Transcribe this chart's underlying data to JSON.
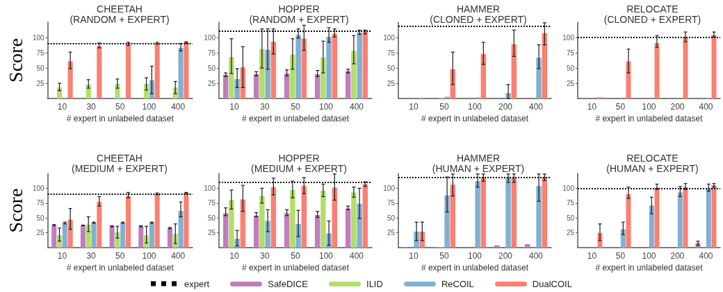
{
  "chart_data": [
    {
      "type": "bar",
      "title": "CHEETAH\n(RANDOM + EXPERT)",
      "xlabel": "# expert in unlabeled dataset",
      "ylabel": "Score",
      "categories": [
        "10",
        "30",
        "50",
        "100",
        "400"
      ],
      "ylim": [
        0,
        125
      ],
      "yticks": [
        25,
        50,
        75,
        100
      ],
      "legend": "bottom",
      "ref_lines": [
        {
          "axis": "y",
          "value": 90,
          "label": "expert",
          "color": "#000000",
          "line_style": "dotted"
        }
      ],
      "series": [
        {
          "name": "SafeDICE",
          "color": "#c17dbd",
          "values": [
            0,
            0,
            0,
            0,
            0
          ]
        },
        {
          "name": "ILID",
          "color": "#b3de69",
          "values": [
            18,
            23,
            24,
            24,
            18
          ],
          "errors": [
            [
              13,
              25
            ],
            [
              17,
              31
            ],
            [
              17,
              32
            ],
            [
              14,
              34
            ],
            [
              8,
              28
            ]
          ]
        },
        {
          "name": "ReCOIL",
          "color": "#80b1d3",
          "values": [
            1,
            1,
            1,
            30,
            83
          ],
          "errors": [
            null,
            null,
            null,
            [
              8,
              53
            ],
            [
              78,
              90
            ]
          ]
        },
        {
          "name": "DualCOIL",
          "color": "#fb8072",
          "values": [
            61,
            86,
            89,
            90,
            92
          ],
          "errors": [
            [
              49,
              76
            ],
            [
              83,
              91
            ],
            [
              87,
              92
            ],
            [
              89,
              92
            ],
            [
              91,
              93
            ]
          ]
        }
      ]
    },
    {
      "type": "bar",
      "title": "HOPPER\n(RANDOM + EXPERT)",
      "xlabel": "# expert in unlabeled dataset",
      "categories": [
        "10",
        "30",
        "50",
        "100",
        "400"
      ],
      "ylim": [
        0,
        125
      ],
      "yticks": [
        25,
        50,
        75,
        100
      ],
      "ref_lines": [
        {
          "axis": "y",
          "value": 110,
          "color": "#000000",
          "line_style": "dotted"
        }
      ],
      "series": [
        {
          "color": "#c17dbd",
          "values": [
            39,
            40,
            41,
            40,
            45
          ],
          "errors": [
            [
              36,
              42
            ],
            [
              37,
              44
            ],
            [
              37,
              47
            ],
            [
              36,
              46
            ],
            [
              42,
              48
            ]
          ]
        },
        {
          "color": "#b3de69",
          "values": [
            68,
            81,
            72,
            67,
            78
          ],
          "errors": [
            [
              41,
              98
            ],
            [
              50,
              114
            ],
            [
              48,
              98
            ],
            [
              42,
              94
            ],
            [
              57,
              103
            ]
          ]
        },
        {
          "color": "#80b1d3",
          "values": [
            32,
            80,
            104,
            101,
            108
          ],
          "errors": [
            [
              18,
              49
            ],
            [
              48,
              114
            ],
            [
              99,
              114
            ],
            [
              92,
              116
            ],
            [
              105,
              112
            ]
          ]
        },
        {
          "color": "#fb8072",
          "values": [
            51,
            93,
            98,
            106,
            109
          ],
          "errors": [
            [
              18,
              85
            ],
            [
              73,
              114
            ],
            [
              79,
              120
            ],
            [
              101,
              114
            ],
            [
              106,
              112
            ]
          ]
        }
      ]
    },
    {
      "type": "bar",
      "title": "HAMMER\n(CLONED + EXPERT)",
      "xlabel": "# expert in unlabeled dataset",
      "categories": [
        "10",
        "50",
        "100",
        "200",
        "400"
      ],
      "ylim": [
        0,
        125
      ],
      "yticks": [
        25,
        50,
        75,
        100
      ],
      "ref_lines": [
        {
          "axis": "y",
          "value": 118,
          "color": "#000000",
          "line_style": "dotted"
        }
      ],
      "series": [
        {
          "color": "#c17dbd",
          "values": [
            0,
            0,
            0,
            0,
            0
          ]
        },
        {
          "color": "#b3de69",
          "values": [
            0,
            1,
            0,
            0,
            0
          ]
        },
        {
          "color": "#80b1d3",
          "values": [
            0,
            3,
            2,
            9,
            67
          ],
          "errors": [
            null,
            null,
            null,
            [
              0,
              23
            ],
            [
              49,
              88
            ]
          ]
        },
        {
          "color": "#fb8072",
          "values": [
            1,
            48,
            73,
            89,
            107
          ],
          "errors": [
            null,
            [
              23,
              76
            ],
            [
              56,
              92
            ],
            [
              69,
              112
            ],
            [
              88,
              124
            ]
          ]
        }
      ]
    },
    {
      "type": "bar",
      "title": "RELOCATE\n(CLONED + EXPERT)",
      "xlabel": "# expert in unlabeled dataset",
      "categories": [
        "10",
        "50",
        "100",
        "200",
        "400"
      ],
      "ylim": [
        0,
        125
      ],
      "yticks": [
        25,
        50,
        75,
        100
      ],
      "ref_lines": [
        {
          "axis": "y",
          "value": 100,
          "color": "#000000",
          "line_style": "dotted"
        }
      ],
      "series": [
        {
          "color": "#c17dbd",
          "values": [
            0,
            0,
            0,
            0,
            0
          ]
        },
        {
          "color": "#b3de69",
          "values": [
            0,
            0,
            0,
            0,
            0
          ]
        },
        {
          "color": "#80b1d3",
          "values": [
            0,
            0,
            0,
            0,
            1
          ]
        },
        {
          "color": "#fb8072",
          "values": [
            2,
            61,
            91,
            100,
            104
          ],
          "errors": [
            null,
            [
              42,
              81
            ],
            [
              84,
              103
            ],
            [
              93,
              109
            ],
            [
              101,
              109
            ]
          ]
        }
      ]
    },
    {
      "type": "bar",
      "title": "CHEETAH\n(MEDIUM + EXPERT)",
      "xlabel": "# expert in unlabeled dataset",
      "ylabel": "Score",
      "categories": [
        "10",
        "30",
        "50",
        "100",
        "400"
      ],
      "ylim": [
        0,
        125
      ],
      "yticks": [
        25,
        50,
        75,
        100
      ],
      "ref_lines": [
        {
          "axis": "y",
          "value": 90,
          "color": "#000000",
          "line_style": "dotted"
        }
      ],
      "series": [
        {
          "color": "#c17dbd",
          "values": [
            38,
            37,
            36,
            36,
            33
          ],
          "errors": [
            [
              37,
              39
            ],
            [
              37,
              38
            ],
            [
              35,
              37
            ],
            [
              35,
              37
            ],
            [
              32,
              34
            ]
          ]
        },
        {
          "color": "#b3de69",
          "values": [
            21,
            39,
            26,
            21,
            23
          ],
          "errors": [
            [
              11,
              33
            ],
            [
              27,
              52
            ],
            [
              16,
              36
            ],
            [
              8,
              36
            ],
            [
              7,
              40
            ]
          ]
        },
        {
          "color": "#80b1d3",
          "values": [
            42,
            42,
            42,
            42,
            62
          ],
          "errors": [
            [
              40,
              43
            ],
            [
              41,
              43
            ],
            [
              41,
              43
            ],
            [
              41,
              43
            ],
            [
              52,
              77
            ]
          ]
        },
        {
          "color": "#fb8072",
          "values": [
            47,
            77,
            87,
            90,
            92
          ],
          "errors": [
            [
              31,
              66
            ],
            [
              70,
              86
            ],
            [
              84,
              93
            ],
            [
              89,
              92
            ],
            [
              91,
              93
            ]
          ]
        }
      ]
    },
    {
      "type": "bar",
      "title": "HOPPER\n(MEDIUM + EXPERT)",
      "xlabel": "# expert in unlabeled dataset",
      "categories": [
        "10",
        "30",
        "50",
        "100",
        "400"
      ],
      "ylim": [
        0,
        125
      ],
      "yticks": [
        25,
        50,
        75,
        100
      ],
      "ref_lines": [
        {
          "axis": "y",
          "value": 110,
          "color": "#000000",
          "line_style": "dotted"
        }
      ],
      "series": [
        {
          "color": "#c17dbd",
          "values": [
            58,
            54,
            58,
            55,
            66
          ],
          "errors": [
            [
              54,
              67
            ],
            [
              52,
              59
            ],
            [
              54,
              64
            ],
            [
              51,
              61
            ],
            [
              64,
              70
            ]
          ]
        },
        {
          "color": "#b3de69",
          "values": [
            80,
            87,
            97,
            96,
            93
          ],
          "errors": [
            [
              65,
              97
            ],
            [
              75,
              100
            ],
            [
              84,
              112
            ],
            [
              86,
              107
            ],
            [
              85,
              102
            ]
          ]
        },
        {
          "color": "#80b1d3",
          "values": [
            15,
            45,
            40,
            24,
            74
          ],
          "errors": [
            [
              3,
              29
            ],
            [
              27,
              64
            ],
            [
              19,
              63
            ],
            [
              4,
              45
            ],
            [
              49,
              100
            ]
          ]
        },
        {
          "color": "#fb8072",
          "values": [
            81,
            102,
            104,
            101,
            107
          ],
          "errors": [
            [
              61,
              105
            ],
            [
              89,
              117
            ],
            [
              91,
              118
            ],
            [
              80,
              124
            ],
            [
              103,
              111
            ]
          ]
        }
      ]
    },
    {
      "type": "bar",
      "title": "HAMMER\n(HUMAN + EXPERT)",
      "xlabel": "# expert in unlabeled dataset",
      "categories": [
        "10",
        "50",
        "100",
        "200",
        "400"
      ],
      "ylim": [
        0,
        125
      ],
      "yticks": [
        25,
        50,
        75,
        100
      ],
      "ref_lines": [
        {
          "axis": "y",
          "value": 118,
          "color": "#000000",
          "line_style": "dotted"
        }
      ],
      "series": [
        {
          "color": "#c17dbd",
          "values": [
            1,
            1,
            0,
            4,
            6
          ]
        },
        {
          "color": "#b3de69",
          "values": [
            0,
            1,
            0,
            0,
            0
          ]
        },
        {
          "color": "#80b1d3",
          "values": [
            27,
            88,
            112,
            118,
            104
          ],
          "errors": [
            [
              12,
              43
            ],
            [
              60,
              119
            ],
            [
              102,
              124
            ],
            [
              110,
              124
            ],
            [
              78,
              124
            ]
          ]
        },
        {
          "color": "#fb8072",
          "values": [
            27,
            106,
            118,
            118,
            119
          ],
          "errors": [
            [
              12,
              43
            ],
            [
              87,
              124
            ],
            [
              112,
              124
            ],
            [
              110,
              124
            ],
            [
              113,
              124
            ]
          ]
        }
      ]
    },
    {
      "type": "bar",
      "title": "RELOCATE\n(HUMAN + EXPERT)",
      "xlabel": "# expert in unlabeled dataset",
      "categories": [
        "10",
        "50",
        "100",
        "200",
        "400"
      ],
      "ylim": [
        0,
        125
      ],
      "yticks": [
        25,
        50,
        75,
        100
      ],
      "ref_lines": [
        {
          "axis": "y",
          "value": 100,
          "color": "#000000",
          "line_style": "dotted"
        }
      ],
      "series": [
        {
          "color": "#c17dbd",
          "values": [
            0,
            0,
            0,
            0,
            8
          ],
          "errors": [
            null,
            null,
            null,
            null,
            [
              4,
              11
            ]
          ]
        },
        {
          "color": "#b3de69",
          "values": [
            0,
            0,
            0,
            0,
            0
          ]
        },
        {
          "color": "#80b1d3",
          "values": [
            0,
            31,
            71,
            93,
            100
          ],
          "errors": [
            null,
            [
              22,
              43
            ],
            [
              57,
              85
            ],
            [
              86,
              103
            ],
            [
              95,
              107
            ]
          ]
        },
        {
          "color": "#fb8072",
          "values": [
            25,
            90,
            101,
            102,
            105
          ],
          "errors": [
            [
              12,
              40
            ],
            [
              83,
              102
            ],
            [
              98,
              107
            ],
            [
              98,
              108
            ],
            [
              102,
              108
            ]
          ]
        }
      ]
    }
  ]
}
